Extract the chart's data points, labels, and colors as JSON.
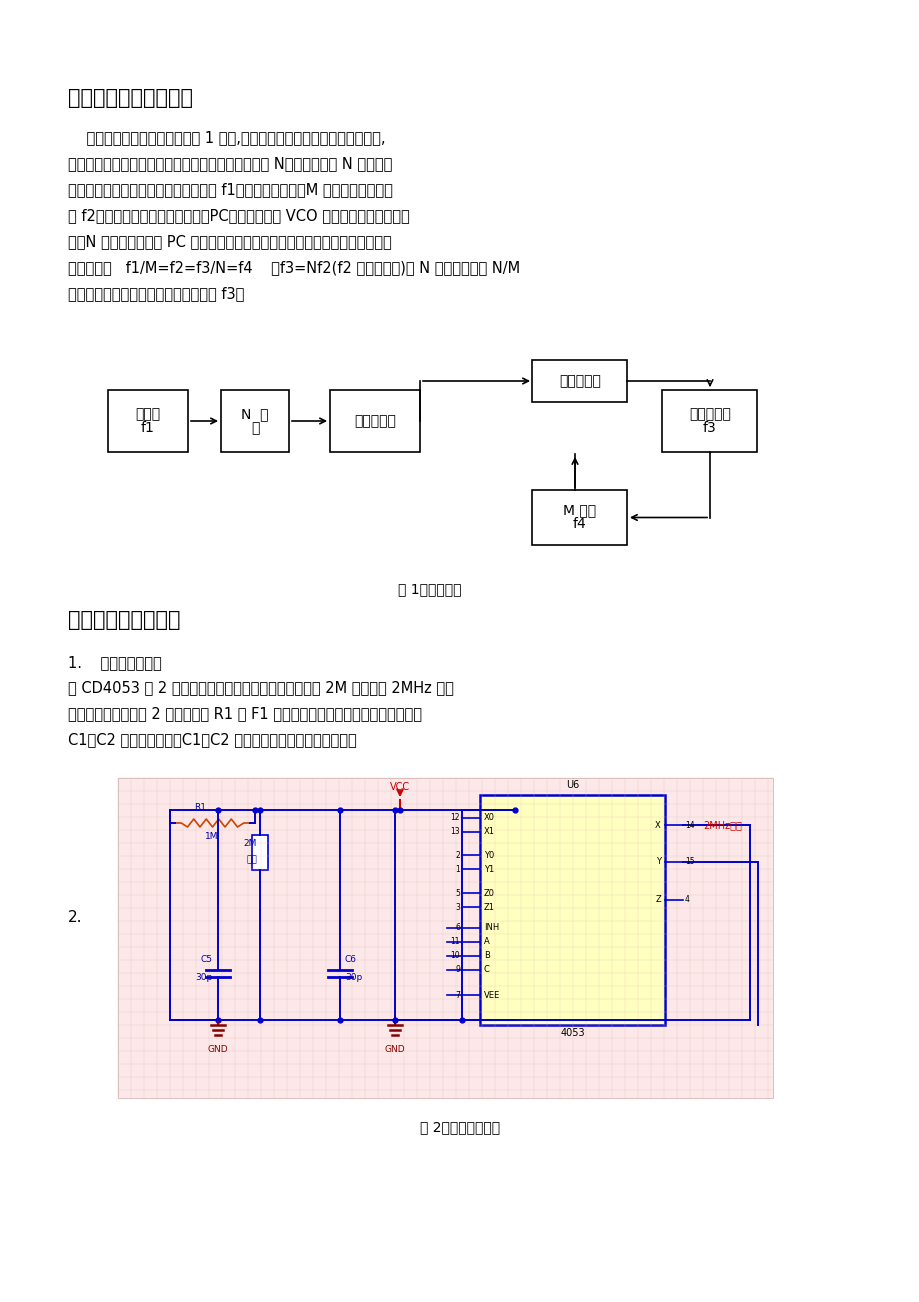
{
  "bg_color": "#ffffff",
  "page_width": 9.2,
  "page_height": 13.02,
  "section5_title": "五、总体方案的确定：",
  "section5_body": [
    "    总体方案的设计原理框图如图 1 所示,锁相环路对稳定度的参考振动器锁定,",
    "环内串接可编程的分频器，通过改变分频器的分配比 N，从而就得到 N 倍参考频",
    "率的稳定输出。振荡源输出的信号频率 f1，经固定分频后（M 分频）得到基准频",
    "率 f2，输入锁相环的相位比较器（PC）。锁相环的 VCO 输出信号经可编程分频",
    "器（N 分频）后输入到 PC 的另一端，这两个信号进行相位比较，当锁相环路锁",
    "定后得到：   f1/M=f2=f3/N=f4    故f3=Nf2(f2 为基准频率)当 N 变化时，或者 N/M",
    "变化时，就可以得到一系列的输出频率 f3。"
  ],
  "fig1_caption": "图 1：原理框图",
  "section6_title": "六、具体设计步骤：",
  "sub1_title": "1.    振荡源的设计：",
  "sub1_body": [
    "用 CD4053 三 2 通道数字控制模拟开关构成的反相器和 2M 晶体组成 2MHz 振荡",
    "器，接成的电路如图 2 所示。图中 R1 使 F1 工作于线性放大区。晶体的等效电感，",
    "C1、C2 构成谐振回路。C1、C2 可利用器件的分布电容不另接。"
  ],
  "sub2_label": "2.",
  "fig2_caption": "图 2：振荡源的设计"
}
